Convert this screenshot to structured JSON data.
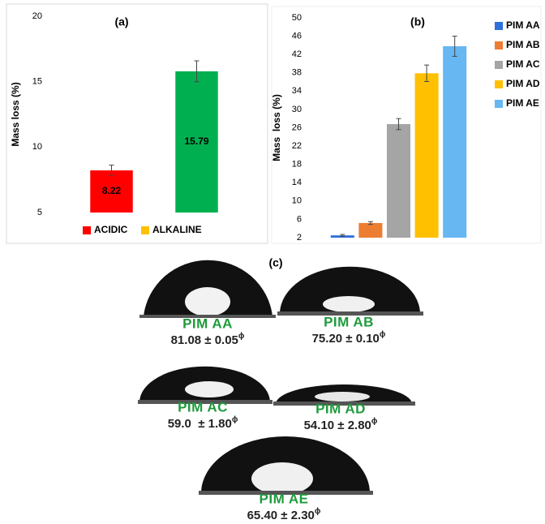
{
  "chart_data": [
    {
      "type": "bar",
      "title": "(a)",
      "y_label": "Mass loss (%)",
      "categories": [
        null
      ],
      "series": [
        {
          "name": "ACIDIC",
          "color": "#ff0000",
          "bar_color": "#ff0000",
          "values": [
            8.22
          ],
          "errors": [
            0.4
          ]
        },
        {
          "name": "ALKALINE",
          "color": "#ffc000",
          "bar_color": "#00b050",
          "values": [
            15.79
          ],
          "errors": [
            0.8
          ]
        }
      ],
      "ylim": [
        5,
        20
      ],
      "yticks": [
        5,
        10,
        15,
        20
      ],
      "legend": "bottom",
      "data_labels": true
    },
    {
      "type": "bar",
      "title": "(b)",
      "y_label": "Mass  loss (%)",
      "categories": [
        null
      ],
      "series": [
        {
          "name": "PIM AA",
          "color": "#2e6fdc",
          "values": [
            2.5
          ],
          "errors": [
            0.2
          ]
        },
        {
          "name": "PIM AB",
          "color": "#ed7d31",
          "values": [
            5.2
          ],
          "errors": [
            0.3
          ]
        },
        {
          "name": "PIM AC",
          "color": "#a5a5a5",
          "values": [
            26.8
          ],
          "errors": [
            1.2
          ]
        },
        {
          "name": "PIM AD",
          "color": "#ffc000",
          "values": [
            37.9
          ],
          "errors": [
            1.8
          ]
        },
        {
          "name": "PIM AE",
          "color": "#66b7f2",
          "values": [
            43.8
          ],
          "errors": [
            2.2
          ]
        }
      ],
      "ylim": [
        2,
        50
      ],
      "yticks": [
        2,
        6,
        10,
        14,
        18,
        22,
        26,
        30,
        34,
        38,
        42,
        46,
        50
      ],
      "legend": "right",
      "data_labels": false
    }
  ],
  "panel_c": {
    "label": "(c)",
    "droplets": [
      {
        "name": "PIM AA",
        "angle": "81.08 ± 0.05",
        "symbol": "ϕ"
      },
      {
        "name": "PIM AB",
        "angle": "75.20 ± 0.10",
        "symbol": "ϕ"
      },
      {
        "name": "PIM AC",
        "angle": "59.0  ± 1.80",
        "symbol": "ϕ"
      },
      {
        "name": "PIM AD",
        "angle": "54.10 ± 2.80",
        "symbol": "ϕ"
      },
      {
        "name": "PIM AE",
        "angle": "65.40 ± 2.30",
        "symbol": "ϕ"
      }
    ]
  }
}
